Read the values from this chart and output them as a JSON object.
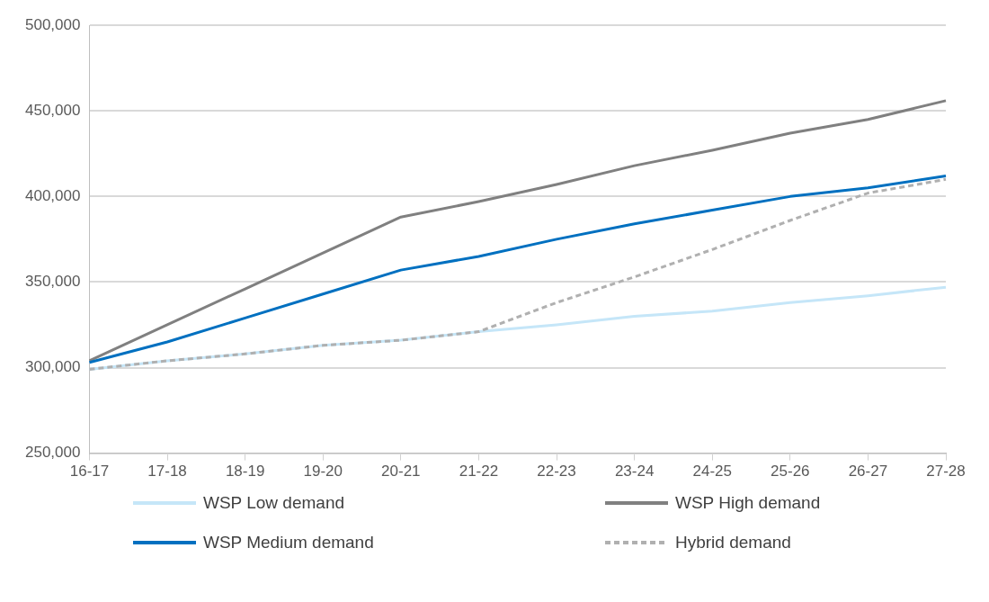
{
  "chart_data": {
    "type": "line",
    "categories": [
      "16-17",
      "17-18",
      "18-19",
      "19-20",
      "20-21",
      "21-22",
      "22-23",
      "23-24",
      "24-25",
      "25-26",
      "26-27",
      "27-28"
    ],
    "series": [
      {
        "name": "WSP Low demand",
        "color": "#c5e6f8",
        "values": [
          299000,
          304000,
          308000,
          313000,
          316000,
          321000,
          325000,
          330000,
          333000,
          338000,
          342000,
          347000
        ]
      },
      {
        "name": "WSP High demand",
        "color": "#808080",
        "values": [
          304000,
          325000,
          346000,
          367000,
          388000,
          397000,
          407000,
          418000,
          427000,
          437000,
          445000,
          456000
        ]
      },
      {
        "name": "WSP Medium demand",
        "color": "#0070c0",
        "values": [
          303000,
          315000,
          329000,
          343000,
          357000,
          365000,
          375000,
          384000,
          392000,
          400000,
          405000,
          412000
        ]
      },
      {
        "name": "Hybrid demand",
        "color": "#b0b0b0",
        "line_style": "dashed",
        "values": [
          299000,
          304000,
          308000,
          313000,
          316000,
          321000,
          338000,
          353000,
          369000,
          386000,
          402000,
          410000
        ]
      }
    ],
    "ylim": [
      250000,
      500000
    ],
    "yticks": [
      {
        "value": 250000,
        "label": "250,000"
      },
      {
        "value": 300000,
        "label": "300,000"
      },
      {
        "value": 350000,
        "label": "350,000"
      },
      {
        "value": 400000,
        "label": "400,000"
      },
      {
        "value": 450000,
        "label": "450,000"
      },
      {
        "value": 500000,
        "label": "500,000"
      }
    ],
    "grid": "y",
    "legend": "bottom",
    "marker": "none"
  }
}
